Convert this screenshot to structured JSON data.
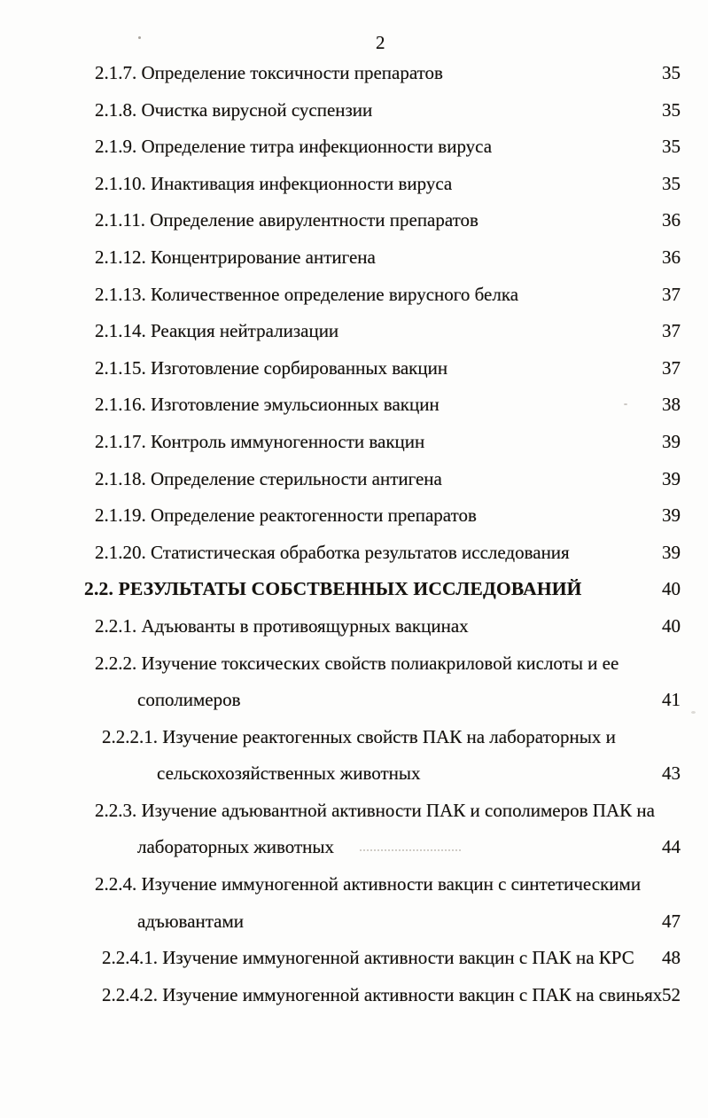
{
  "document": {
    "page_number": "2",
    "background_color": "#fdfdfc",
    "text_color": "#16130f",
    "language": "ru",
    "kind": "scanned table of contents page"
  },
  "toc": {
    "entries": [
      {
        "bold": false,
        "page": "35",
        "lines": [
          {
            "text": "2.1.7. Определение токсичности препаратов",
            "indent": 1
          }
        ]
      },
      {
        "bold": false,
        "page": "35",
        "lines": [
          {
            "text": "2.1.8. Очистка вирусной суспензии",
            "indent": 1
          }
        ]
      },
      {
        "bold": false,
        "page": "35",
        "lines": [
          {
            "text": "2.1.9. Определение титра инфекционности вируса",
            "indent": 1
          }
        ]
      },
      {
        "bold": false,
        "page": "35",
        "lines": [
          {
            "text": "2.1.10. Инактивация инфекционности вируса",
            "indent": 1
          }
        ]
      },
      {
        "bold": false,
        "page": "36",
        "lines": [
          {
            "text": "2.1.11. Определение авирулентности препаратов",
            "indent": 1
          }
        ]
      },
      {
        "bold": false,
        "page": "36",
        "lines": [
          {
            "text": "2.1.12. Концентрирование антигена",
            "indent": 1
          }
        ]
      },
      {
        "bold": false,
        "page": "37",
        "lines": [
          {
            "text": "2.1.13. Количественное определение вирусного белка",
            "indent": 1
          }
        ]
      },
      {
        "bold": false,
        "page": "37",
        "lines": [
          {
            "text": "2.1.14. Реакция нейтрализации",
            "indent": 1
          }
        ]
      },
      {
        "bold": false,
        "page": "37",
        "lines": [
          {
            "text": "2.1.15. Изготовление сорбированных вакцин",
            "indent": 1
          }
        ]
      },
      {
        "bold": false,
        "page": "38",
        "lines": [
          {
            "text": "2.1.16. Изготовление эмульсионных вакцин",
            "indent": 1
          }
        ]
      },
      {
        "bold": false,
        "page": "39",
        "lines": [
          {
            "text": "2.1.17. Контроль иммуногенности вакцин",
            "indent": 1
          }
        ]
      },
      {
        "bold": false,
        "page": "39",
        "lines": [
          {
            "text": "2.1.18. Определение стерильности антигена",
            "indent": 1
          }
        ]
      },
      {
        "bold": false,
        "page": "39",
        "lines": [
          {
            "text": "2.1.19. Определение реактогенности препаратов",
            "indent": 1
          }
        ]
      },
      {
        "bold": false,
        "page": "39",
        "lines": [
          {
            "text": "2.1.20. Статистическая обработка результатов исследования",
            "indent": 1
          }
        ]
      },
      {
        "bold": true,
        "page": "40",
        "lines": [
          {
            "text": "2.2. РЕЗУЛЬТАТЫ СОБСТВЕННЫХ ИССЛЕДОВАНИЙ",
            "indent": 0
          }
        ]
      },
      {
        "bold": false,
        "page": "40",
        "lines": [
          {
            "text": "2.2.1. Адъюванты в противоящурных вакцинах",
            "indent": 1
          }
        ]
      },
      {
        "bold": false,
        "page": "41",
        "lines": [
          {
            "text": "2.2.2. Изучение токсических свойств полиакриловой кислоты и ее",
            "indent": 1
          },
          {
            "text": "сополимеров",
            "indent": 3
          }
        ]
      },
      {
        "bold": false,
        "page": "43",
        "lines": [
          {
            "text": "2.2.2.1. Изучение реактогенных свойств ПАК на лабораторных и",
            "indent": 2
          },
          {
            "text": "сельскохозяйственных животных",
            "indent": 4
          }
        ]
      },
      {
        "bold": false,
        "page": "44",
        "lines": [
          {
            "text": "2.2.3. Изучение адъювантной активности ПАК и сополимеров ПАК на",
            "indent": 1
          },
          {
            "text": "лабораторных животных",
            "indent": 3
          }
        ]
      },
      {
        "bold": false,
        "page": "47",
        "lines": [
          {
            "text": "2.2.4. Изучение иммуногенной активности вакцин с синтетическими",
            "indent": 1
          },
          {
            "text": "адъювантами",
            "indent": 3
          }
        ]
      },
      {
        "bold": false,
        "page": "48",
        "lines": [
          {
            "text": "2.2.4.1. Изучение иммуногенной активности вакцин с ПАК на КРС",
            "indent": 2
          }
        ]
      },
      {
        "bold": false,
        "page": "52",
        "lines": [
          {
            "text": "2.2.4.2. Изучение иммуногенной активности вакцин с ПАК на свиньях",
            "indent": 2
          }
        ]
      }
    ]
  }
}
